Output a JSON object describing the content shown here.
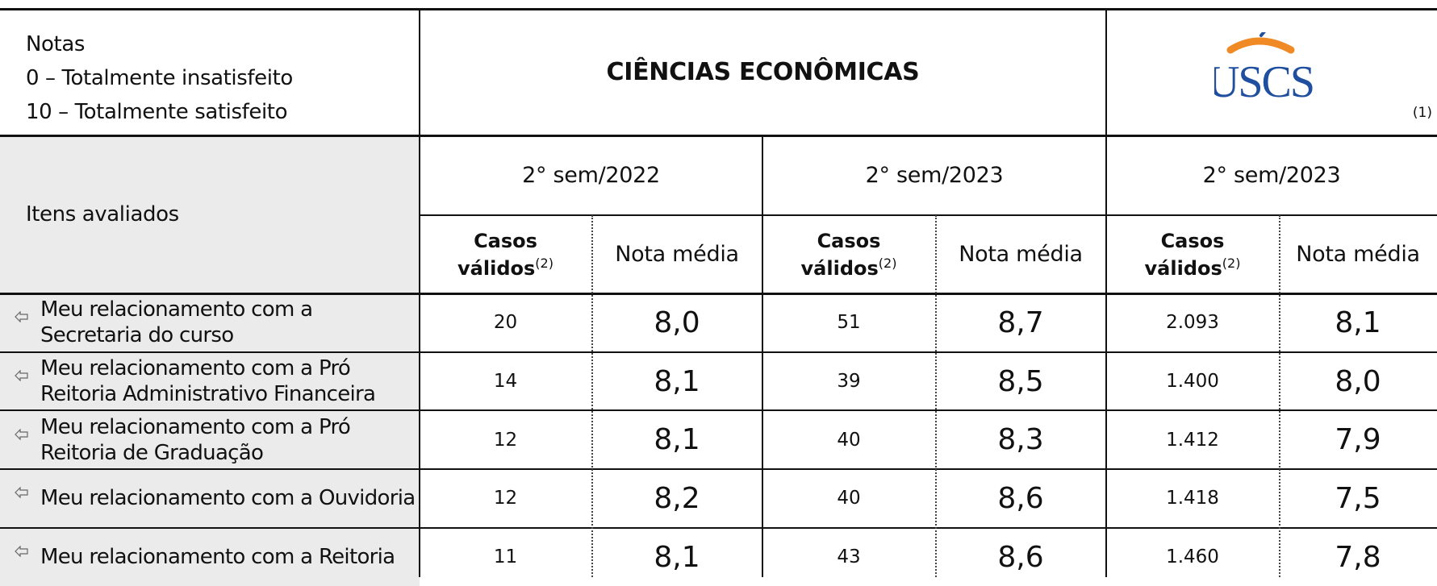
{
  "notes": {
    "title": "Notas",
    "lines": [
      "0 – Totalmente insatisfeito",
      "10 – Totalmente satisfeito"
    ]
  },
  "title": "CIÊNCIAS ECONÔMICAS",
  "logo": "USCS",
  "logo_note": "(1)",
  "table": {
    "row_header": "Itens avaliados",
    "periods": [
      "2° sem/2022",
      "2° sem/2023",
      "2° sem/2023"
    ],
    "cases_label": "Casos válidos",
    "cases_note": "(2)",
    "mean_label": "Nota média",
    "rows": [
      {
        "item": "Meu relacionamento com a Secretaria do curso",
        "values": [
          "20",
          "8,0",
          "51",
          "8,7",
          "2.093",
          "8,1"
        ]
      },
      {
        "item": "Meu relacionamento com a Pró Reitoria Administrativo Financeira",
        "values": [
          "14",
          "8,1",
          "39",
          "8,5",
          "1.400",
          "8,0"
        ]
      },
      {
        "item": "Meu relacionamento com a Pró Reitoria de Graduação",
        "values": [
          "12",
          "8,1",
          "40",
          "8,3",
          "1.412",
          "7,9"
        ]
      },
      {
        "item": "Meu relacionamento com a Ouvidoria",
        "values": [
          "12",
          "8,2",
          "40",
          "8,6",
          "1.418",
          "7,5"
        ]
      },
      {
        "item": "Meu relacionamento com a Reitoria",
        "values": [
          "11",
          "8,1",
          "43",
          "8,6",
          "1.460",
          "7,8"
        ]
      }
    ]
  }
}
